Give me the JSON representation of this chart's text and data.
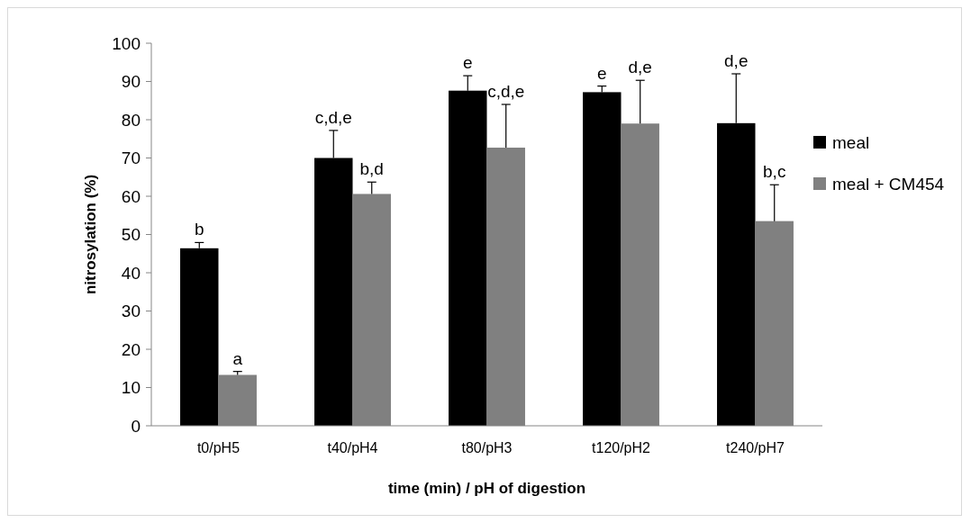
{
  "chart_data": {
    "type": "bar",
    "xlabel": "time (min) / pH of digestion",
    "ylabel": "nitrosylation (%)",
    "categories": [
      "t0/pH5",
      "t40/pH4",
      "t80/pH3",
      "t120/pH2",
      "t240/pH7"
    ],
    "series": [
      {
        "name": "meal",
        "color": "#000000",
        "values": [
          46.4,
          70,
          87.6,
          87.2,
          79.1
        ],
        "errors": [
          [
            46.4,
            47.9
          ],
          [
            70,
            77.2
          ],
          [
            87.6,
            91.5
          ],
          [
            87.2,
            88.8
          ],
          [
            79.1,
            92
          ]
        ],
        "value_labels": [
          "b",
          "c,d,e",
          "e",
          "e",
          "d,e"
        ]
      },
      {
        "name": "meal + CM454",
        "color": "#808080",
        "values": [
          13.3,
          60.6,
          72.7,
          79,
          53.5
        ],
        "errors": [
          [
            13.3,
            14.2
          ],
          [
            60.6,
            63.7
          ],
          [
            72.7,
            84
          ],
          [
            79,
            90.3
          ],
          [
            53.5,
            63
          ]
        ],
        "value_labels": [
          "a",
          "b,d",
          "c,d,e",
          "d,e",
          "b,c"
        ]
      }
    ],
    "ylim": [
      0,
      100
    ],
    "yticks": [
      0,
      10,
      20,
      30,
      40,
      50,
      60,
      70,
      80,
      90,
      100
    ],
    "legend": "right"
  }
}
